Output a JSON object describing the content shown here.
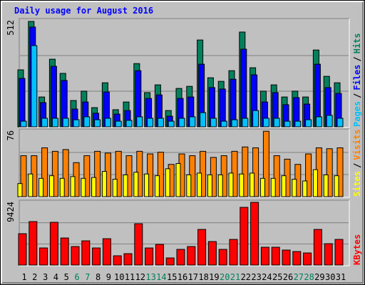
{
  "chart_data": [
    {
      "type": "bar",
      "title": "Daily usage for August 2016",
      "ylim": [
        0,
        512
      ],
      "yticks": [
        512
      ],
      "legend_separator": "/",
      "series": [
        {
          "name": "Hits",
          "color": "#00805c",
          "values": [
            273,
            505,
            143,
            324,
            256,
            126,
            171,
            92,
            211,
            82,
            119,
            303,
            164,
            201,
            78,
            184,
            194,
            416,
            235,
            218,
            269,
            454,
            283,
            171,
            201,
            143,
            171,
            143,
            368,
            242,
            211
          ]
        },
        {
          "name": "Files",
          "color": "#0000ff",
          "values": [
            232,
            478,
            116,
            290,
            222,
            85,
            119,
            65,
            167,
            61,
            78,
            269,
            136,
            153,
            51,
            136,
            143,
            300,
            188,
            181,
            228,
            372,
            249,
            119,
            164,
            106,
            140,
            109,
            300,
            188,
            160
          ]
        },
        {
          "name": "Pages",
          "color": "#00c0ff",
          "values": [
            27,
            389,
            41,
            41,
            41,
            34,
            48,
            34,
            41,
            27,
            31,
            48,
            41,
            41,
            27,
            41,
            48,
            68,
            41,
            27,
            34,
            41,
            78,
            41,
            41,
            27,
            27,
            34,
            48,
            55,
            41
          ]
        }
      ]
    },
    {
      "type": "bar",
      "ylim": [
        0,
        76
      ],
      "yticks": [
        76
      ],
      "legend_separator": "/",
      "series": [
        {
          "name": "Visits",
          "color": "#ff8000",
          "values": [
            47,
            47,
            56,
            52,
            54,
            39,
            47,
            52,
            50,
            52,
            47,
            52,
            49,
            51,
            37,
            49,
            47,
            52,
            45,
            47,
            52,
            57,
            56,
            75,
            47,
            43,
            37,
            49,
            56,
            55,
            56
          ]
        },
        {
          "name": "Sites",
          "color": "#ffff00",
          "values": [
            15,
            26,
            21,
            24,
            21,
            23,
            21,
            22,
            29,
            20,
            25,
            28,
            26,
            24,
            32,
            38,
            25,
            27,
            25,
            25,
            27,
            26,
            27,
            21,
            21,
            24,
            20,
            18,
            31,
            25,
            24
          ]
        }
      ]
    },
    {
      "type": "bar",
      "ylim": [
        0,
        9424
      ],
      "yticks": [
        9424
      ],
      "categories": [
        "1",
        "2",
        "3",
        "4",
        "5",
        "6",
        "7",
        "8",
        "9",
        "10",
        "11",
        "12",
        "13",
        "14",
        "15",
        "16",
        "17",
        "18",
        "19",
        "20",
        "21",
        "22",
        "23",
        "24",
        "25",
        "26",
        "27",
        "28",
        "29",
        "30",
        "31"
      ],
      "category_colors": [
        "#000000",
        "#000000",
        "#000000",
        "#000000",
        "#000000",
        "#00805c",
        "#00805c",
        "#000000",
        "#000000",
        "#000000",
        "#000000",
        "#000000",
        "#00805c",
        "#00805c",
        "#000000",
        "#000000",
        "#000000",
        "#000000",
        "#000000",
        "#00805c",
        "#00805c",
        "#000000",
        "#000000",
        "#000000",
        "#000000",
        "#000000",
        "#00805c",
        "#00805c",
        "#000000",
        "#000000",
        "#000000"
      ],
      "series": [
        {
          "name": "KBytes",
          "color": "#ff0000",
          "values": [
            4660,
            6460,
            2540,
            6350,
            4024,
            2750,
            3600,
            2540,
            3918,
            1377,
            1694,
            6140,
            2540,
            3071,
            1059,
            2330,
            2750,
            5295,
            3494,
            2330,
            3812,
            8577,
            9318,
            2647,
            2647,
            2224,
            2012,
            1800,
            5295,
            3176,
            3812
          ]
        }
      ]
    }
  ]
}
